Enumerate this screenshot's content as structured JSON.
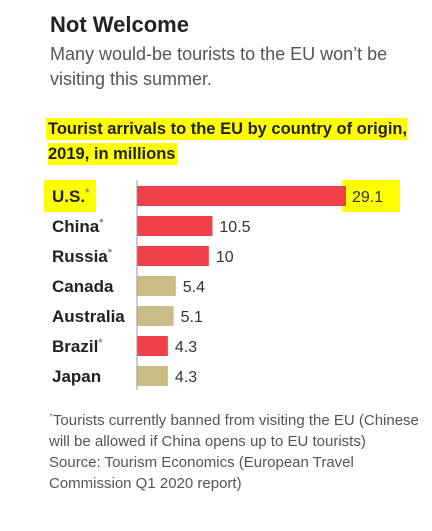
{
  "title": "Not Welcome",
  "subtitle": "Many would-be tourists to the EU won’t be visiting this summer.",
  "chart_data": {
    "type": "bar",
    "orientation": "horizontal",
    "title": "Tourist arrivals to the EU by country of origin, 2019, in millions",
    "categories": [
      "U.S.",
      "China",
      "Russia",
      "Canada",
      "Australia",
      "Brazil",
      "Japan"
    ],
    "values": [
      29.1,
      10.5,
      10,
      5.4,
      5.1,
      4.3,
      4.3
    ],
    "value_labels": [
      "29.1",
      "10.5",
      "10",
      "5.4",
      "5.1",
      "4.3",
      "4.3"
    ],
    "banned": [
      true,
      true,
      true,
      false,
      false,
      true,
      false
    ],
    "banned_marker": "*",
    "xlim": [
      0,
      29.1
    ],
    "grid": false,
    "colors": {
      "banned": "#f0404a",
      "allowed": "#c9bc86",
      "highlight": "#ffff00",
      "axis": "#999999"
    },
    "highlighted_category": "U.S."
  },
  "footnote": {
    "marker": "*",
    "text": "Tourists currently banned from visiting the EU (Chinese will be allowed if China opens up to EU tourists)",
    "source": "Source: Tourism Economics (European Travel Commission Q1 2020 report)"
  }
}
